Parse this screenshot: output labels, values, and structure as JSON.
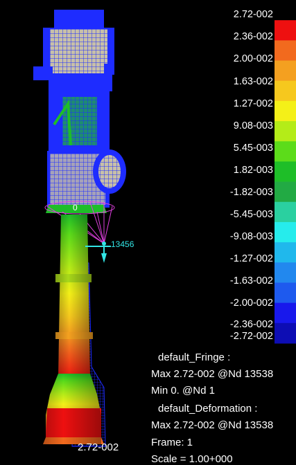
{
  "legend": {
    "labels": [
      "2.72-002",
      "2.36-002",
      "2.00-002",
      "1.63-002",
      "1.27-002",
      "9.08-003",
      "5.45-003",
      "1.82-003",
      "-1.82-003",
      "-5.45-003",
      "-9.08-003",
      "-1.27-002",
      "-1.63-002",
      "-2.00-002",
      "-2.36-002",
      "-2.72-002"
    ],
    "colors": [
      "#000000",
      "#ee1010",
      "#f26a1e",
      "#f4a020",
      "#f6c81e",
      "#f4f018",
      "#b4ec18",
      "#5cdc1a",
      "#1ebe28",
      "#22aa44",
      "#2ad0a0",
      "#26ecec",
      "#20b8ec",
      "#2288ee",
      "#1e5aee",
      "#1818ec",
      "#0d0db4"
    ]
  },
  "info": {
    "fringe_title": "default_Fringe :",
    "fringe_max": "Max 2.72-002 @Nd 13538",
    "fringe_min": "Min  0. @Nd 1",
    "deformation_title": "default_Deformation :",
    "deformation_max": "Max 2.72-002 @Nd 13538",
    "frame": "Frame:    1",
    "scale": "Scale = 1.00+000"
  },
  "model": {
    "node_label": "13456",
    "max_label": "2.72-002",
    "node_marker": "0"
  },
  "colors": {
    "mesh": "#1e2cff",
    "spider": "#e040e0",
    "node_text": "#32e6e6"
  }
}
